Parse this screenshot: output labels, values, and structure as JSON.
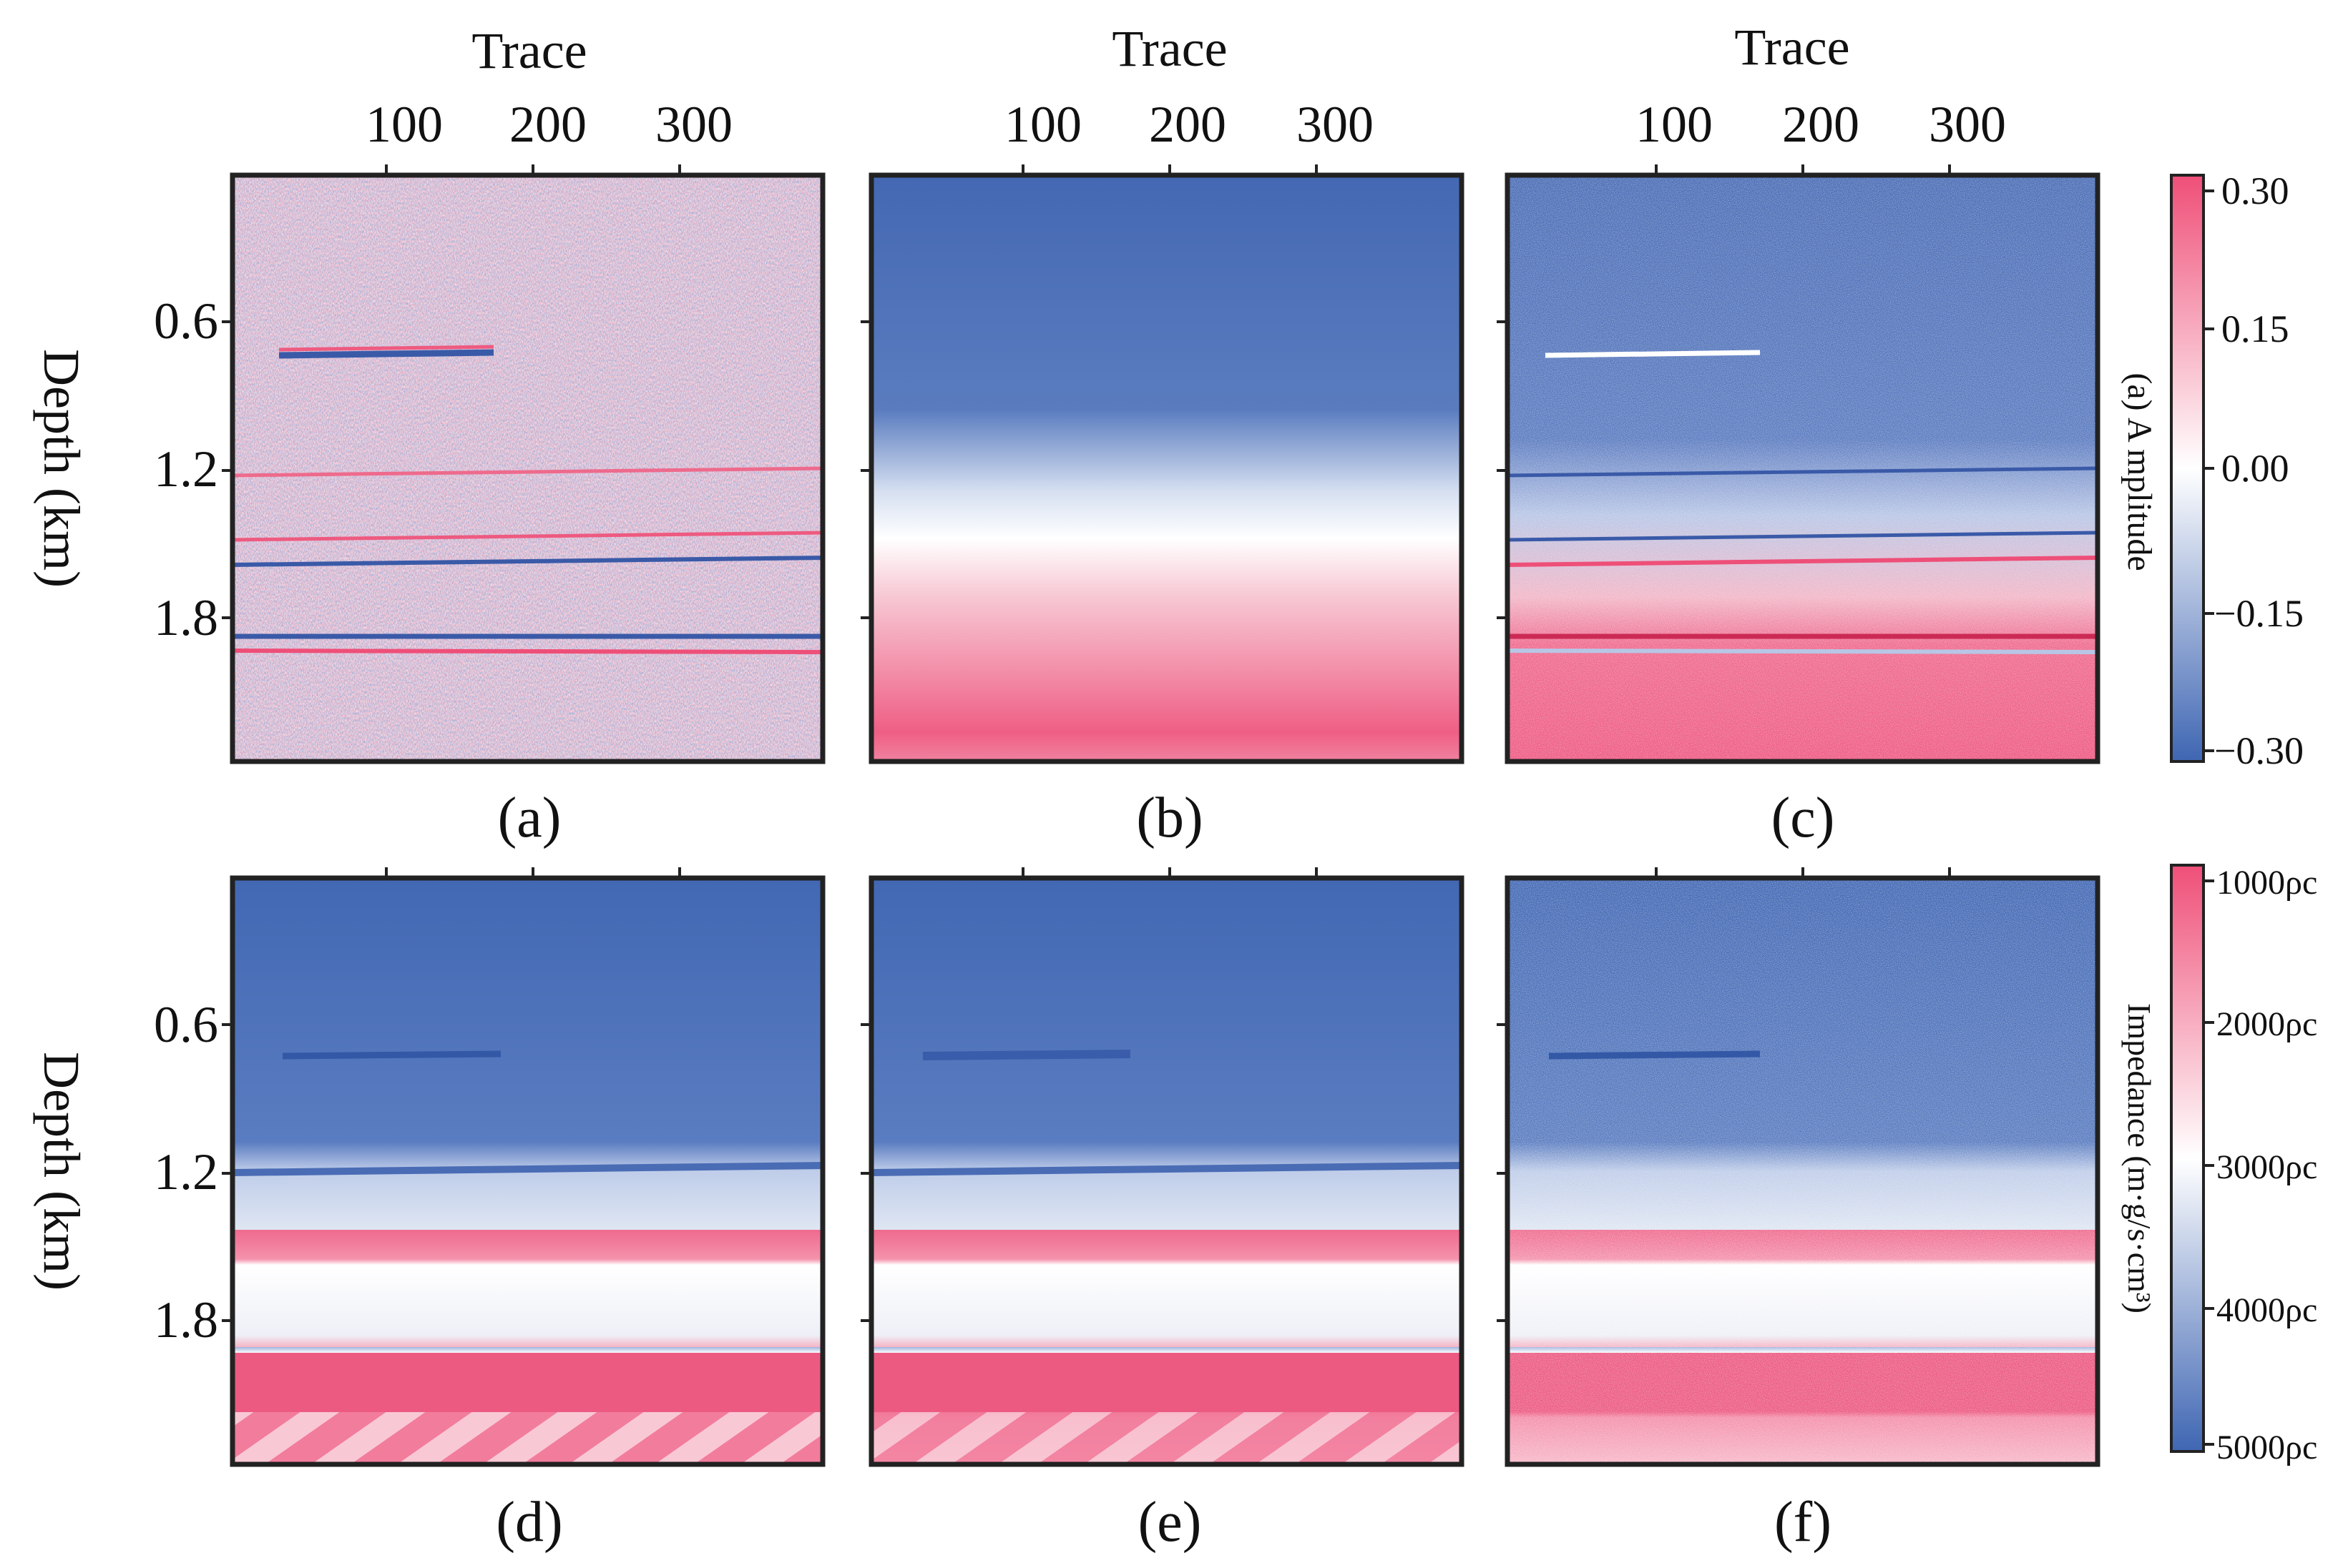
{
  "colors": {
    "blue": "#3f66b3",
    "white": "#ffffff",
    "pink": "#ef4f78",
    "frame": "#222222"
  },
  "axes": {
    "x_label": "Trace",
    "y_label": "Depth (km)",
    "x_ticks": [
      "100",
      "200",
      "300"
    ],
    "y_ticks": [
      "0.6",
      "1.2",
      "1.8"
    ]
  },
  "colorbars": [
    {
      "label": "(a) A mplitude",
      "ticks": [
        "0.30",
        "0.15",
        "0.00",
        "−0.15",
        "−0.30"
      ]
    },
    {
      "label": "Impedance (m·g/s·cm³)",
      "ticks": [
        "1000ρc",
        "2000ρc",
        "3000ρc",
        "4000ρc",
        "5000ρc"
      ]
    }
  ],
  "chart_data": [
    {
      "type": "heatmap",
      "panel": "(a)",
      "xlabel": "Trace",
      "ylabel": "Depth (km)",
      "x_range": [
        0,
        400
      ],
      "y_range": [
        0,
        2.4
      ],
      "x_ticks": [
        100,
        200,
        300
      ],
      "y_ticks": [
        0.6,
        1.2,
        1.8
      ],
      "colorbar": "Amplitude",
      "colorbar_range": [
        -0.3,
        0.3
      ]
    },
    {
      "type": "heatmap",
      "panel": "(b)",
      "xlabel": "Trace",
      "x_range": [
        0,
        400
      ],
      "y_range": [
        0,
        2.4
      ],
      "x_ticks": [
        100,
        200,
        300
      ],
      "colorbar": "Amplitude",
      "colorbar_range": [
        -0.3,
        0.3
      ]
    },
    {
      "type": "heatmap",
      "panel": "(c)",
      "xlabel": "Trace",
      "x_range": [
        0,
        400
      ],
      "y_range": [
        0,
        2.4
      ],
      "x_ticks": [
        100,
        200,
        300
      ],
      "colorbar": "Amplitude",
      "colorbar_range": [
        -0.3,
        0.3
      ]
    },
    {
      "type": "heatmap",
      "panel": "(d)",
      "ylabel": "Depth (km)",
      "x_range": [
        0,
        400
      ],
      "y_range": [
        0,
        2.4
      ],
      "y_ticks": [
        0.6,
        1.2,
        1.8
      ],
      "colorbar": "Impedance",
      "colorbar_range": [
        1000,
        5000
      ]
    },
    {
      "type": "heatmap",
      "panel": "(e)",
      "x_range": [
        0,
        400
      ],
      "y_range": [
        0,
        2.4
      ],
      "colorbar": "Impedance",
      "colorbar_range": [
        1000,
        5000
      ]
    },
    {
      "type": "heatmap",
      "panel": "(f)",
      "x_range": [
        0,
        400
      ],
      "y_range": [
        0,
        2.4
      ],
      "colorbar": "Impedance",
      "colorbar_range": [
        1000,
        5000
      ]
    }
  ]
}
